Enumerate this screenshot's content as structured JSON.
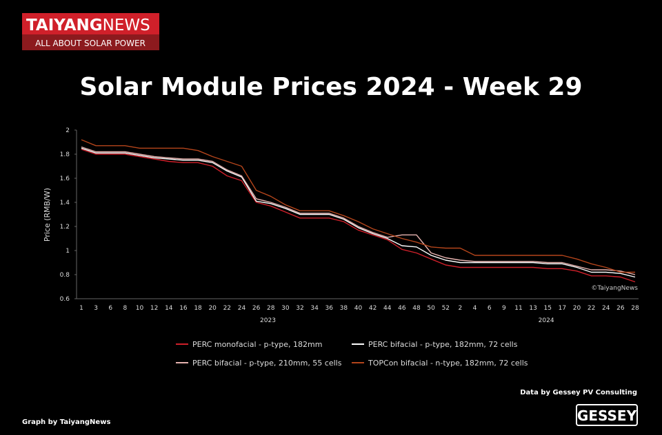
{
  "header": {
    "brand_a": "TAIYANG",
    "brand_b": "NEWS",
    "tagline": "ALL ABOUT SOLAR POWER"
  },
  "chart_data": {
    "type": "line",
    "title": "Solar Module Prices 2024 - Week 29",
    "y_label": "Price (RMB/W)",
    "watermark": "©TaiyangNews",
    "categories": [
      "1",
      "3",
      "6",
      "8",
      "10",
      "12",
      "14",
      "16",
      "18",
      "20",
      "22",
      "24",
      "26",
      "28",
      "30",
      "32",
      "34",
      "36",
      "38",
      "40",
      "42",
      "44",
      "46",
      "48",
      "50",
      "52",
      "2",
      "4",
      "6",
      "9",
      "11",
      "13",
      "15",
      "17",
      "20",
      "22",
      "24",
      "26",
      "28"
    ],
    "year_labels": [
      "2023",
      "2024"
    ],
    "ylim": [
      0.6,
      2
    ],
    "yticks": [
      0.6,
      0.8,
      1,
      1.2,
      1.4,
      1.6,
      1.8,
      2
    ],
    "series": [
      {
        "name": "PERC monofacial - p-type, 182mm",
        "color": "#d0202a",
        "values": [
          1.84,
          1.8,
          1.8,
          1.8,
          1.78,
          1.76,
          1.74,
          1.73,
          1.73,
          1.7,
          1.62,
          1.58,
          1.4,
          1.37,
          1.32,
          1.27,
          1.27,
          1.27,
          1.24,
          1.17,
          1.13,
          1.09,
          1.01,
          0.98,
          0.93,
          0.88,
          0.86,
          0.86,
          0.86,
          0.86,
          0.86,
          0.86,
          0.85,
          0.85,
          0.83,
          0.79,
          0.79,
          0.78,
          0.74
        ]
      },
      {
        "name": "PERC bifacial - p-type, 182mm, 72 cells",
        "color": "#ffffff",
        "values": [
          1.85,
          1.81,
          1.81,
          1.81,
          1.79,
          1.77,
          1.76,
          1.75,
          1.75,
          1.73,
          1.66,
          1.61,
          1.41,
          1.39,
          1.35,
          1.3,
          1.3,
          1.3,
          1.26,
          1.19,
          1.14,
          1.1,
          1.04,
          1.03,
          0.96,
          0.92,
          0.9,
          0.9,
          0.9,
          0.9,
          0.9,
          0.9,
          0.89,
          0.89,
          0.86,
          0.82,
          0.82,
          0.81,
          0.78
        ]
      },
      {
        "name": "PERC bifacial - p-type, 210mm, 55 cells",
        "color": "#e8b4b0",
        "values": [
          1.86,
          1.82,
          1.82,
          1.82,
          1.8,
          1.78,
          1.77,
          1.76,
          1.76,
          1.74,
          1.67,
          1.62,
          1.43,
          1.4,
          1.36,
          1.31,
          1.31,
          1.31,
          1.27,
          1.2,
          1.15,
          1.11,
          1.13,
          1.13,
          0.98,
          0.94,
          0.92,
          0.91,
          0.91,
          0.91,
          0.91,
          0.91,
          0.9,
          0.9,
          0.87,
          0.84,
          0.84,
          0.83,
          0.8
        ]
      },
      {
        "name": "TOPCon bifacial - n-type, 182mm, 72 cells",
        "color": "#b5451b",
        "values": [
          1.92,
          1.87,
          1.87,
          1.87,
          1.85,
          1.85,
          1.85,
          1.85,
          1.83,
          1.78,
          1.74,
          1.7,
          1.5,
          1.45,
          1.38,
          1.33,
          1.33,
          1.33,
          1.29,
          1.24,
          1.18,
          1.14,
          1.1,
          1.07,
          1.03,
          1.02,
          1.02,
          0.96,
          0.96,
          0.96,
          0.96,
          0.96,
          0.96,
          0.96,
          0.93,
          0.89,
          0.86,
          0.82,
          0.82
        ]
      }
    ]
  },
  "footer": {
    "source": "Data by Gessey PV Consulting",
    "credit": "Graph by TaiyangNews",
    "logo": "GESSEY"
  }
}
